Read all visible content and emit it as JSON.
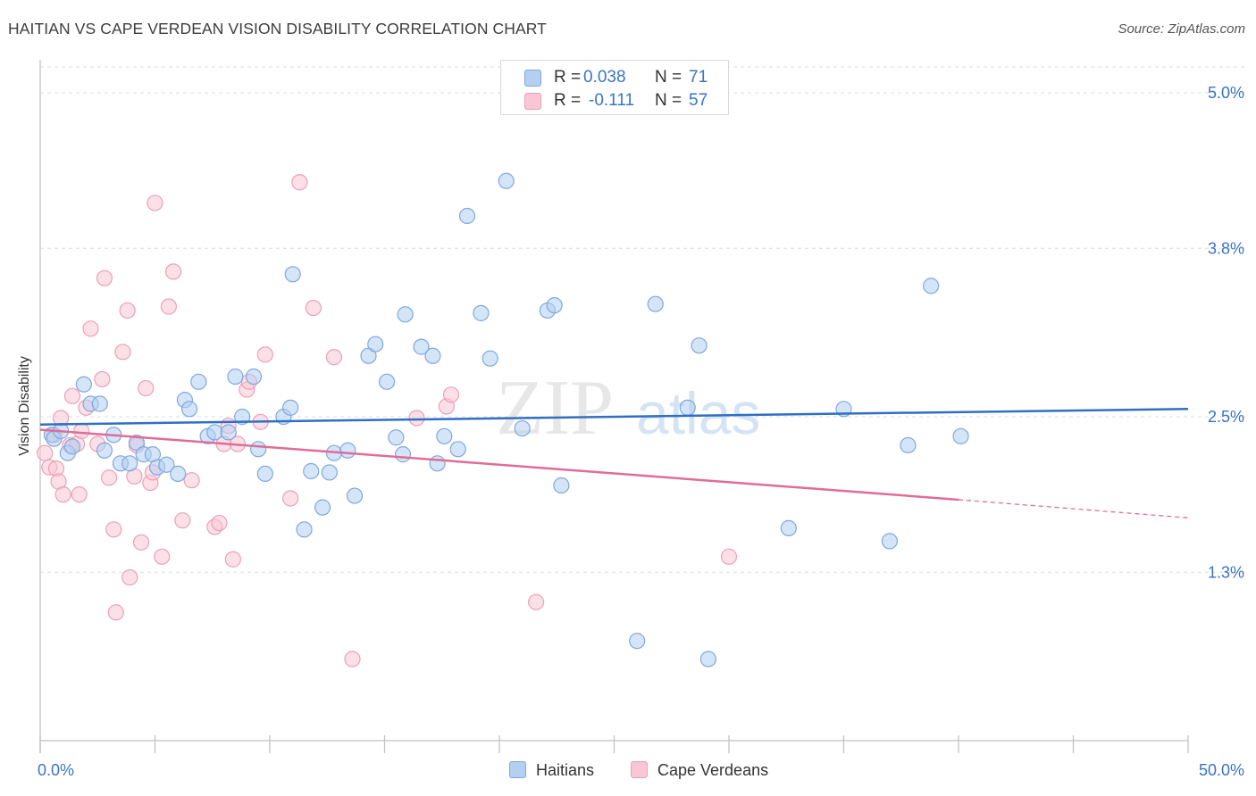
{
  "title": "HAITIAN VS CAPE VERDEAN VISION DISABILITY CORRELATION CHART",
  "source": "Source: ZipAtlas.com",
  "watermark": {
    "zip": "ZIP",
    "atlas": "atlas"
  },
  "legend_top": {
    "rows": [
      {
        "r_label": "R =",
        "r_value": "0.038",
        "n_label": "N =",
        "n_value": "71"
      },
      {
        "r_label": "R =",
        "r_value": "-0.111",
        "n_label": "N =",
        "n_value": "57"
      }
    ]
  },
  "colors": {
    "haitians_fill": "#b3cff2",
    "haitians_stroke": "#7fa8de",
    "haitians_line": "#2f6fc4",
    "capeverdeans_fill": "#f9c6d5",
    "capeverdeans_stroke": "#eba0b8",
    "capeverdeans_line": "#e06c97",
    "tick_label": "#3a74c4",
    "grid": "#dcdcdc",
    "axis": "#cccccc"
  },
  "chart_data": {
    "type": "scatter",
    "title": "HAITIAN VS CAPE VERDEAN VISION DISABILITY CORRELATION CHART",
    "xlabel": "",
    "ylabel": "Vision Disability",
    "xlim": [
      0,
      50
    ],
    "ylim": [
      0,
      5.2
    ],
    "x_tick_labels": [
      "0.0%",
      "50.0%"
    ],
    "y_ticks": [
      1.3,
      2.5,
      3.8,
      5.0
    ],
    "y_tick_labels": [
      "1.3%",
      "2.5%",
      "3.8%",
      "5.0%"
    ],
    "grid": true,
    "series": [
      {
        "name": "Haitians",
        "r": 0.038,
        "n": 71,
        "trend": {
          "x": [
            0,
            50
          ],
          "y": [
            2.44,
            2.56
          ]
        },
        "points": [
          [
            0.5,
            2.36
          ],
          [
            0.6,
            2.33
          ],
          [
            0.9,
            2.39
          ],
          [
            1.2,
            2.22
          ],
          [
            1.4,
            2.27
          ],
          [
            1.9,
            2.75
          ],
          [
            2.2,
            2.6
          ],
          [
            2.6,
            2.6
          ],
          [
            2.8,
            2.24
          ],
          [
            3.2,
            2.36
          ],
          [
            3.5,
            2.14
          ],
          [
            3.9,
            2.14
          ],
          [
            4.2,
            2.3
          ],
          [
            4.5,
            2.21
          ],
          [
            4.9,
            2.21
          ],
          [
            5.1,
            2.11
          ],
          [
            5.5,
            2.13
          ],
          [
            6.0,
            2.06
          ],
          [
            6.3,
            2.63
          ],
          [
            6.5,
            2.56
          ],
          [
            6.9,
            2.77
          ],
          [
            7.3,
            2.35
          ],
          [
            7.6,
            2.38
          ],
          [
            8.2,
            2.38
          ],
          [
            8.5,
            2.81
          ],
          [
            8.8,
            2.5
          ],
          [
            9.3,
            2.81
          ],
          [
            9.5,
            2.25
          ],
          [
            9.8,
            2.06
          ],
          [
            10.6,
            2.5
          ],
          [
            10.9,
            2.57
          ],
          [
            11.0,
            3.6
          ],
          [
            11.5,
            1.63
          ],
          [
            11.8,
            2.08
          ],
          [
            12.3,
            1.8
          ],
          [
            12.6,
            2.07
          ],
          [
            12.8,
            2.22
          ],
          [
            13.4,
            2.24
          ],
          [
            13.7,
            1.89
          ],
          [
            14.3,
            2.97
          ],
          [
            14.6,
            3.06
          ],
          [
            15.1,
            2.77
          ],
          [
            15.5,
            2.34
          ],
          [
            15.8,
            2.21
          ],
          [
            15.9,
            3.29
          ],
          [
            16.6,
            3.04
          ],
          [
            17.1,
            2.97
          ],
          [
            17.3,
            2.14
          ],
          [
            17.6,
            2.35
          ],
          [
            18.2,
            2.25
          ],
          [
            18.6,
            4.05
          ],
          [
            19.2,
            3.3
          ],
          [
            19.6,
            2.95
          ],
          [
            20.3,
            4.32
          ],
          [
            21.0,
            2.41
          ],
          [
            22.1,
            3.32
          ],
          [
            22.4,
            3.36
          ],
          [
            22.7,
            1.97
          ],
          [
            26.0,
            0.77
          ],
          [
            26.8,
            3.37
          ],
          [
            28.2,
            2.57
          ],
          [
            28.7,
            3.05
          ],
          [
            29.1,
            0.63
          ],
          [
            32.6,
            1.64
          ],
          [
            35.0,
            2.56
          ],
          [
            37.0,
            1.54
          ],
          [
            37.8,
            2.28
          ],
          [
            38.8,
            3.51
          ],
          [
            40.1,
            2.35
          ]
        ]
      },
      {
        "name": "Cape Verdeans",
        "r": -0.111,
        "n": 57,
        "trend": {
          "x": [
            0,
            40
          ],
          "y": [
            2.4,
            1.86
          ]
        },
        "trend_dashed": {
          "x": [
            40,
            50
          ],
          "y": [
            1.86,
            1.72
          ]
        },
        "points": [
          [
            0.2,
            2.22
          ],
          [
            0.4,
            2.11
          ],
          [
            0.6,
            2.36
          ],
          [
            0.7,
            2.1
          ],
          [
            0.8,
            2.0
          ],
          [
            0.9,
            2.49
          ],
          [
            1.0,
            1.9
          ],
          [
            1.3,
            2.28
          ],
          [
            1.4,
            2.66
          ],
          [
            1.6,
            2.29
          ],
          [
            1.7,
            1.9
          ],
          [
            1.8,
            2.39
          ],
          [
            2.0,
            2.57
          ],
          [
            2.2,
            3.18
          ],
          [
            2.5,
            2.29
          ],
          [
            2.7,
            2.79
          ],
          [
            2.8,
            3.57
          ],
          [
            3.0,
            2.03
          ],
          [
            3.2,
            1.63
          ],
          [
            3.3,
            0.99
          ],
          [
            3.6,
            3.0
          ],
          [
            3.8,
            3.32
          ],
          [
            3.9,
            1.26
          ],
          [
            4.1,
            2.04
          ],
          [
            4.2,
            2.28
          ],
          [
            4.4,
            1.53
          ],
          [
            4.6,
            2.72
          ],
          [
            4.8,
            1.99
          ],
          [
            4.9,
            2.07
          ],
          [
            5.0,
            4.15
          ],
          [
            5.3,
            1.42
          ],
          [
            5.6,
            3.35
          ],
          [
            5.8,
            3.62
          ],
          [
            6.2,
            1.7
          ],
          [
            6.6,
            2.01
          ],
          [
            7.6,
            1.65
          ],
          [
            7.8,
            1.68
          ],
          [
            8.0,
            2.29
          ],
          [
            8.2,
            2.43
          ],
          [
            8.4,
            1.4
          ],
          [
            8.6,
            2.29
          ],
          [
            9.0,
            2.71
          ],
          [
            9.1,
            2.77
          ],
          [
            9.6,
            2.46
          ],
          [
            9.8,
            2.98
          ],
          [
            10.9,
            1.87
          ],
          [
            11.3,
            4.31
          ],
          [
            11.9,
            3.34
          ],
          [
            12.8,
            2.96
          ],
          [
            13.6,
            0.63
          ],
          [
            16.4,
            2.49
          ],
          [
            17.7,
            2.58
          ],
          [
            17.9,
            2.67
          ],
          [
            21.6,
            1.07
          ],
          [
            30.0,
            1.42
          ]
        ]
      }
    ]
  },
  "bottom_legend": [
    {
      "label": "Haitians"
    },
    {
      "label": "Cape Verdeans"
    }
  ]
}
